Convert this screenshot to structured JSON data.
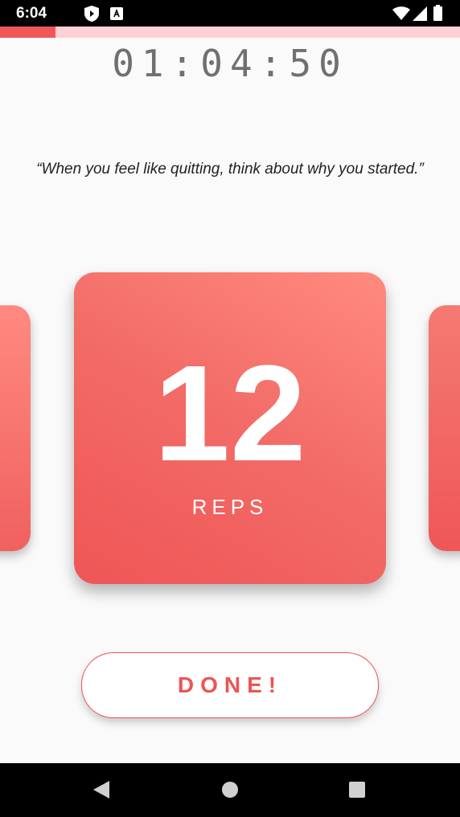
{
  "status_bar": {
    "time": "6:04",
    "icons": [
      "play-protect-icon",
      "accessibility-icon",
      "wifi-icon",
      "signal-icon",
      "battery-icon"
    ]
  },
  "progress": {
    "fraction": 0.12,
    "fill_color": "#f05757",
    "track_color": "#ffd0d5"
  },
  "workout": {
    "timer": "01:04:50",
    "quote": "“When you feel like quitting, think about why you started.”",
    "reps_count": "12",
    "reps_label": "REPS",
    "done_label": "DONE!"
  },
  "colors": {
    "accent": "#ef5353",
    "card_gradient_start": "#ff8a80",
    "card_gradient_end": "#ef5656"
  },
  "nav_bar": {
    "buttons": [
      "back-icon",
      "home-icon",
      "recents-icon"
    ]
  }
}
